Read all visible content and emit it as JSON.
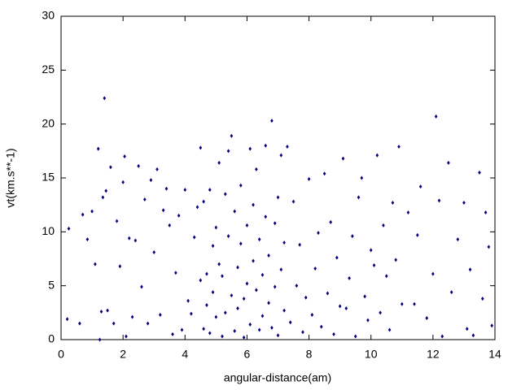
{
  "chart_data": {
    "type": "scatter",
    "xlabel": "angular-distance(am)",
    "ylabel": "vt(km.s**-1)",
    "color": "#00007f",
    "xlim": [
      0,
      14
    ],
    "ylim": [
      0,
      30
    ],
    "xticks": [
      0,
      2,
      4,
      6,
      8,
      10,
      12,
      14
    ],
    "yticks": [
      0,
      5,
      10,
      15,
      20,
      25,
      30
    ],
    "x": [
      0.25,
      0.2,
      0.6,
      0.7,
      0.85,
      1.0,
      1.1,
      1.2,
      1.25,
      1.3,
      1.35,
      1.4,
      1.45,
      1.5,
      1.6,
      1.7,
      1.8,
      1.9,
      2.0,
      2.05,
      2.1,
      2.2,
      2.3,
      2.4,
      2.5,
      2.6,
      2.7,
      2.8,
      2.9,
      3.0,
      3.1,
      3.2,
      3.3,
      3.4,
      3.5,
      3.6,
      3.7,
      3.8,
      3.9,
      4.0,
      4.1,
      4.2,
      4.3,
      4.4,
      4.5,
      4.5,
      4.6,
      4.6,
      4.7,
      4.7,
      4.8,
      4.8,
      4.9,
      4.9,
      5.0,
      5.0,
      5.1,
      5.1,
      5.2,
      5.2,
      5.3,
      5.3,
      5.4,
      5.4,
      5.5,
      5.5,
      5.6,
      5.6,
      5.7,
      5.7,
      5.8,
      5.8,
      5.9,
      5.9,
      6.0,
      6.0,
      6.1,
      6.1,
      6.2,
      6.2,
      6.3,
      6.3,
      6.4,
      6.4,
      6.5,
      6.5,
      6.6,
      6.6,
      6.7,
      6.7,
      6.8,
      6.8,
      6.9,
      6.9,
      7.0,
      7.0,
      7.1,
      7.1,
      7.2,
      7.2,
      7.3,
      7.4,
      7.5,
      7.6,
      7.7,
      7.8,
      7.9,
      8.0,
      8.1,
      8.2,
      8.3,
      8.4,
      8.5,
      8.6,
      8.7,
      8.8,
      8.9,
      9.0,
      9.1,
      9.2,
      9.3,
      9.4,
      9.5,
      9.6,
      9.7,
      9.8,
      9.9,
      10.0,
      10.1,
      10.2,
      10.3,
      10.4,
      10.5,
      10.6,
      10.7,
      10.8,
      10.9,
      11.0,
      11.2,
      11.4,
      11.5,
      11.6,
      11.8,
      12.0,
      12.1,
      12.2,
      12.3,
      12.5,
      12.6,
      12.8,
      13.0,
      13.1,
      13.2,
      13.3,
      13.5,
      13.6,
      13.7,
      13.8,
      13.9
    ],
    "values": [
      10.3,
      1.9,
      1.5,
      11.6,
      9.3,
      11.9,
      7.0,
      17.7,
      0,
      2.6,
      13.2,
      22.4,
      13.8,
      2.7,
      16.0,
      1.5,
      11.0,
      6.8,
      14.6,
      17.0,
      0.3,
      9.4,
      2.1,
      9.2,
      16.1,
      4.9,
      13.0,
      1.5,
      14.8,
      8.1,
      15.8,
      2.3,
      12.0,
      14.0,
      10.6,
      0.5,
      6.2,
      11.5,
      0.9,
      13.9,
      3.6,
      2.4,
      9.5,
      12.3,
      17.8,
      5.5,
      1.0,
      12.8,
      6.1,
      3.2,
      13.9,
      0.6,
      8.7,
      4.4,
      2.1,
      10.4,
      16.4,
      7.0,
      0.3,
      5.9,
      13.5,
      2.5,
      9.6,
      17.5,
      18.9,
      4.1,
      0.8,
      11.9,
      6.7,
      2.9,
      14.3,
      8.9,
      3.8,
      0.2,
      10.6,
      5.2,
      17.7,
      1.4,
      7.3,
      12.5,
      4.6,
      15.8,
      0.9,
      9.3,
      6.0,
      2.2,
      18.0,
      11.4,
      3.4,
      7.8,
      20.3,
      1.1,
      10.8,
      4.9,
      13.2,
      0.4,
      6.5,
      17.1,
      2.7,
      9.0,
      17.9,
      1.6,
      12.8,
      5.0,
      8.8,
      0.7,
      3.9,
      14.9,
      2.3,
      6.6,
      9.9,
      1.2,
      15.4,
      4.3,
      10.9,
      0.5,
      7.6,
      3.1,
      16.8,
      2.9,
      5.7,
      9.6,
      0.3,
      13.2,
      15.0,
      4.0,
      1.8,
      8.3,
      6.9,
      17.1,
      2.5,
      10.6,
      5.9,
      0.9,
      12.7,
      7.4,
      17.9,
      3.3,
      11.8,
      3.3,
      9.7,
      14.2,
      2.0,
      6.1,
      20.7,
      12.9,
      0.3,
      16.4,
      4.4,
      9.3,
      12.7,
      1.0,
      6.5,
      0.4,
      15.5,
      3.8,
      11.8,
      8.6,
      1.3
    ]
  }
}
